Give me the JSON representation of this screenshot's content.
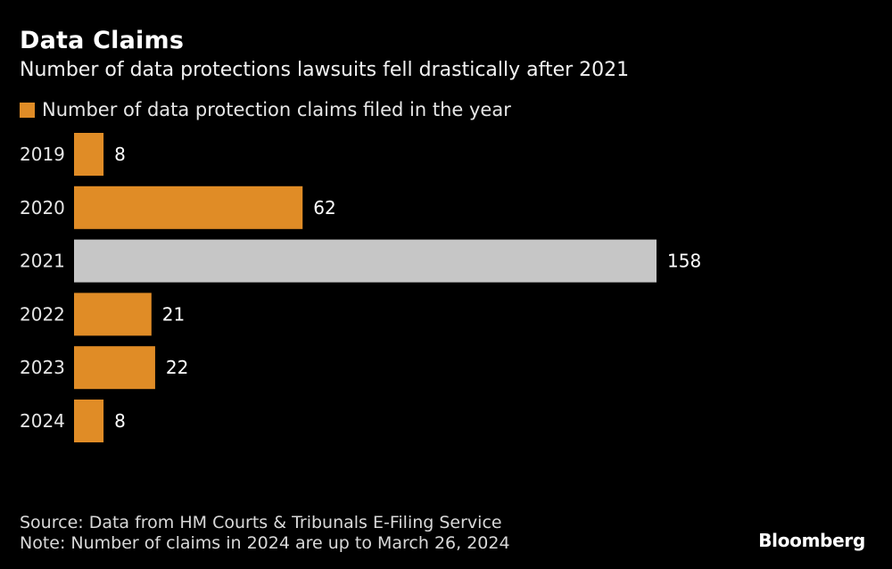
{
  "header": {
    "title": "Data Claims",
    "subtitle": "Number of data protections lawsuits fell drastically after 2021"
  },
  "legend": {
    "label": "Number of data protection claims filed in the year"
  },
  "colors": {
    "bar": "#e08c26",
    "highlight": "#c6c6c6",
    "background": "#000000",
    "text": "#ffffff"
  },
  "chart_data": {
    "type": "bar",
    "orientation": "horizontal",
    "categories": [
      "2019",
      "2020",
      "2021",
      "2022",
      "2023",
      "2024"
    ],
    "series": [
      {
        "name": "Number of data protection claims filed in the year",
        "values": [
          8,
          62,
          158,
          21,
          22,
          8
        ]
      }
    ],
    "highlighted_category": "2021",
    "title": "Data Claims",
    "subtitle": "Number of data protections lawsuits fell drastically after 2021",
    "xlim": [
      0,
      158
    ],
    "grid": false,
    "legend_position": "top-left",
    "data_labels": true
  },
  "footer": {
    "source": "Source: Data from HM Courts & Tribunals E-Filing Service",
    "note": "Note: Number of claims in 2024 are up to March 26, 2024",
    "brand": "Bloomberg"
  }
}
